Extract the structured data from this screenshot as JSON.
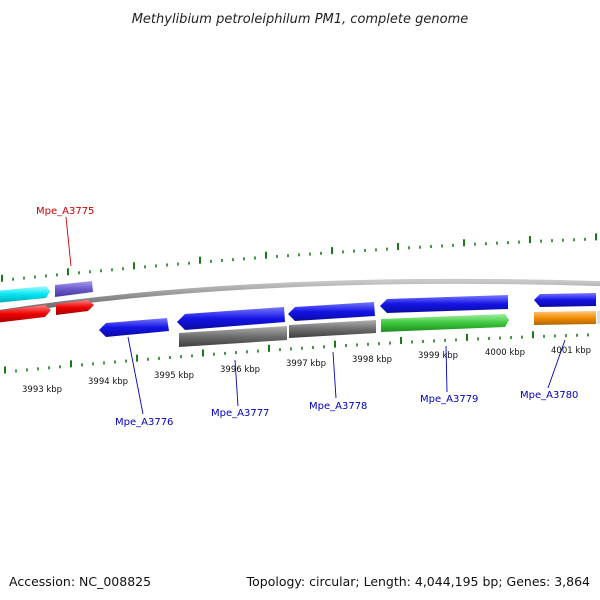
{
  "title": "Methylibium petroleiphilum PM1, complete genome",
  "footer": {
    "accession": "Accession: NC_008825",
    "summary": "Topology: circular; Length: 4,044,195 bp; Genes: 3,864"
  },
  "scale_labels": [
    "3993 kbp",
    "3994 kbp",
    "3995 kbp",
    "3996 kbp",
    "3997 kbp",
    "3998 kbp",
    "3999 kbp",
    "4000 kbp",
    "4001 kbp"
  ],
  "gene_labels": [
    {
      "text": "Mpe_A3775",
      "color": "#cc0000"
    },
    {
      "text": "Mpe_A3776",
      "color": "#0000bb"
    },
    {
      "text": "Mpe_A3777",
      "color": "#0000bb"
    },
    {
      "text": "Mpe_A3778",
      "color": "#0000bb"
    },
    {
      "text": "Mpe_A3779",
      "color": "#0000bb"
    },
    {
      "text": "Mpe_A3780",
      "color": "#0000bb"
    }
  ],
  "colors": {
    "backbone": "#888888",
    "tick": "#1a7a1a",
    "cyan": "#00e5f0",
    "violet": "#6a5acd",
    "red": "#ee0000",
    "blue": "#1414e6",
    "gray": "#6e6e6e",
    "green": "#3cc83c",
    "orange": "#f08c00"
  }
}
